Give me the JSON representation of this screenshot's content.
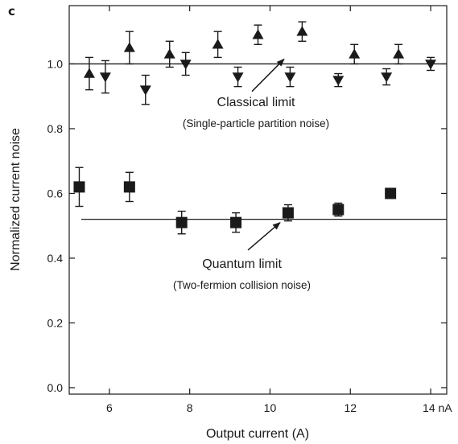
{
  "panel_label": "c",
  "chart_data": {
    "type": "scatter",
    "xlabel": "Output current (A)",
    "ylabel": "Normalized current noise",
    "xlim": [
      5.0,
      14.4
    ],
    "ylim": [
      -0.02,
      1.18
    ],
    "xticks": [
      6,
      8,
      10,
      12,
      14
    ],
    "xtick_labels": [
      "6",
      "8",
      "10",
      "12",
      "14 nA"
    ],
    "yticks": [
      0.0,
      0.2,
      0.4,
      0.6,
      0.8,
      1.0
    ],
    "ytick_labels": [
      "0.0",
      "0.2",
      "0.4",
      "0.6",
      "0.8",
      "1.0"
    ],
    "grid": false,
    "series": [
      {
        "marker": "triangle-up",
        "color": "#1a1a1a",
        "points": [
          {
            "x": 5.5,
            "y": 0.97,
            "err": 0.05
          },
          {
            "x": 6.5,
            "y": 1.05,
            "err": 0.05
          },
          {
            "x": 7.5,
            "y": 1.03,
            "err": 0.04
          },
          {
            "x": 8.7,
            "y": 1.06,
            "err": 0.04
          },
          {
            "x": 9.7,
            "y": 1.09,
            "err": 0.03
          },
          {
            "x": 10.8,
            "y": 1.1,
            "err": 0.03
          },
          {
            "x": 12.1,
            "y": 1.03,
            "err": 0.03
          },
          {
            "x": 13.2,
            "y": 1.03,
            "err": 0.03
          }
        ]
      },
      {
        "marker": "triangle-down",
        "color": "#1a1a1a",
        "points": [
          {
            "x": 5.9,
            "y": 0.96,
            "err": 0.05
          },
          {
            "x": 6.9,
            "y": 0.92,
            "err": 0.045
          },
          {
            "x": 7.9,
            "y": 1.0,
            "err": 0.035
          },
          {
            "x": 9.2,
            "y": 0.96,
            "err": 0.03
          },
          {
            "x": 10.5,
            "y": 0.96,
            "err": 0.03
          },
          {
            "x": 11.7,
            "y": 0.95,
            "err": 0.02
          },
          {
            "x": 12.9,
            "y": 0.96,
            "err": 0.025
          },
          {
            "x": 14.0,
            "y": 1.0,
            "err": 0.02
          }
        ]
      },
      {
        "marker": "square",
        "color": "#1a1a1a",
        "points": [
          {
            "x": 5.25,
            "y": 0.62,
            "err": 0.06
          },
          {
            "x": 6.5,
            "y": 0.62,
            "err": 0.045
          },
          {
            "x": 7.8,
            "y": 0.51,
            "err": 0.035
          },
          {
            "x": 9.15,
            "y": 0.51,
            "err": 0.03
          },
          {
            "x": 10.45,
            "y": 0.54,
            "err": 0.025
          },
          {
            "x": 11.7,
            "y": 0.55,
            "err": 0.02
          },
          {
            "x": 13.0,
            "y": 0.6,
            "err": 0.015
          }
        ]
      }
    ],
    "reference_lines": [
      {
        "y": 1.0,
        "x_from": 5.0,
        "x_to": 14.4
      },
      {
        "y": 0.52,
        "x_from": 5.3,
        "x_to": 14.4
      }
    ],
    "annotations": [
      {
        "text": "Classical limit",
        "subtext": "(Single-particle partition noise)",
        "x": 9.65,
        "y": 0.87,
        "sub_y": 0.805,
        "arrow_from": [
          9.55,
          0.915
        ],
        "arrow_to": [
          10.35,
          1.015
        ]
      },
      {
        "text": "Quantum limit",
        "subtext": "(Two-fermion collision noise)",
        "x": 9.3,
        "y": 0.37,
        "sub_y": 0.305,
        "arrow_from": [
          9.45,
          0.425
        ],
        "arrow_to": [
          10.25,
          0.51
        ]
      }
    ]
  }
}
